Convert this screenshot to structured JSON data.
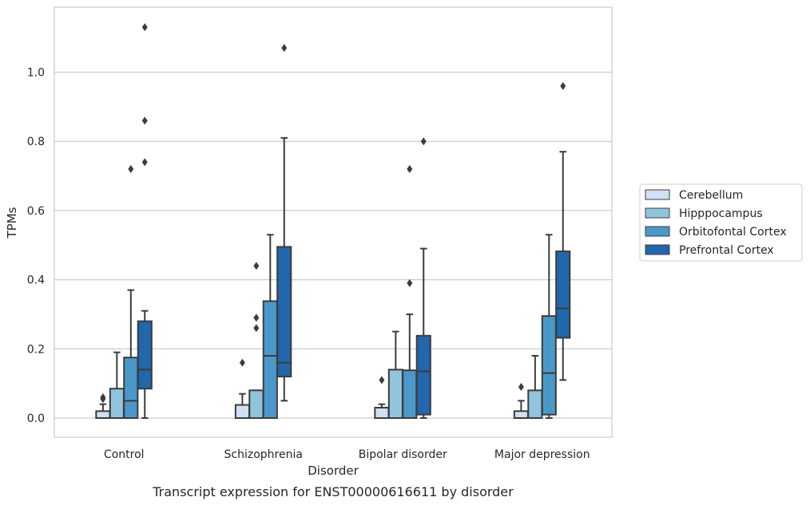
{
  "caption": "Transcript expression for ENST00000616611 by disorder",
  "chart_data": {
    "type": "box",
    "xlabel": "Disorder",
    "ylabel": "TPMs",
    "ylim": [
      -0.055,
      1.19
    ],
    "yticks": [
      0.0,
      0.2,
      0.4,
      0.6,
      0.8,
      1.0
    ],
    "ytick_labels": [
      "0.0",
      "0.2",
      "0.4",
      "0.6",
      "0.8",
      "1.0"
    ],
    "grid": "horizontal",
    "legend_position": "right",
    "categories": [
      "Control",
      "Schizophrenia",
      "Bipolar disorder",
      "Major depression"
    ],
    "series": [
      {
        "name": "Cerebellum",
        "color": "#cfe1f2",
        "boxes": [
          {
            "whisker_low": 0.0,
            "q1": 0.0,
            "median": 0.0,
            "q3": 0.02,
            "whisker_high": 0.04,
            "outliers": [
              0.06,
              0.055
            ]
          },
          {
            "whisker_low": 0.0,
            "q1": 0.0,
            "median": 0.0,
            "q3": 0.038,
            "whisker_high": 0.07,
            "outliers": [
              0.16
            ]
          },
          {
            "whisker_low": 0.0,
            "q1": 0.0,
            "median": 0.0,
            "q3": 0.03,
            "whisker_high": 0.04,
            "outliers": [
              0.11
            ]
          },
          {
            "whisker_low": 0.0,
            "q1": 0.0,
            "median": 0.0,
            "q3": 0.02,
            "whisker_high": 0.05,
            "outliers": [
              0.09
            ]
          }
        ]
      },
      {
        "name": "Hipppocampus",
        "color": "#93c4de",
        "boxes": [
          {
            "whisker_low": 0.0,
            "q1": 0.0,
            "median": 0.0,
            "q3": 0.085,
            "whisker_high": 0.19,
            "outliers": []
          },
          {
            "whisker_low": 0.0,
            "q1": 0.0,
            "median": 0.0,
            "q3": 0.08,
            "whisker_high": 0.08,
            "outliers": [
              0.26,
              0.29,
              0.44
            ]
          },
          {
            "whisker_low": 0.0,
            "q1": 0.0,
            "median": 0.0,
            "q3": 0.14,
            "whisker_high": 0.25,
            "outliers": []
          },
          {
            "whisker_low": 0.0,
            "q1": 0.0,
            "median": 0.0,
            "q3": 0.08,
            "whisker_high": 0.18,
            "outliers": []
          }
        ]
      },
      {
        "name": "Orbitofontal Cortex",
        "color": "#4a98c9",
        "boxes": [
          {
            "whisker_low": 0.0,
            "q1": 0.0,
            "median": 0.05,
            "q3": 0.175,
            "whisker_high": 0.37,
            "outliers": [
              0.72
            ]
          },
          {
            "whisker_low": 0.0,
            "q1": 0.0,
            "median": 0.18,
            "q3": 0.338,
            "whisker_high": 0.53,
            "outliers": []
          },
          {
            "whisker_low": 0.0,
            "q1": 0.0,
            "median": 0.0,
            "q3": 0.138,
            "whisker_high": 0.3,
            "outliers": [
              0.39,
              0.72
            ]
          },
          {
            "whisker_low": 0.0,
            "q1": 0.01,
            "median": 0.13,
            "q3": 0.295,
            "whisker_high": 0.53,
            "outliers": []
          }
        ]
      },
      {
        "name": "Prefrontal Cortex",
        "color": "#2266ac",
        "boxes": [
          {
            "whisker_low": 0.0,
            "q1": 0.085,
            "median": 0.14,
            "q3": 0.28,
            "whisker_high": 0.31,
            "outliers": [
              0.74,
              0.86,
              1.13
            ]
          },
          {
            "whisker_low": 0.05,
            "q1": 0.12,
            "median": 0.16,
            "q3": 0.495,
            "whisker_high": 0.81,
            "outliers": [
              1.07
            ]
          },
          {
            "whisker_low": 0.0,
            "q1": 0.01,
            "median": 0.135,
            "q3": 0.238,
            "whisker_high": 0.49,
            "outliers": [
              0.8
            ]
          },
          {
            "whisker_low": 0.11,
            "q1": 0.232,
            "median": 0.317,
            "q3": 0.482,
            "whisker_high": 0.77,
            "outliers": [
              0.96
            ]
          }
        ]
      }
    ]
  }
}
